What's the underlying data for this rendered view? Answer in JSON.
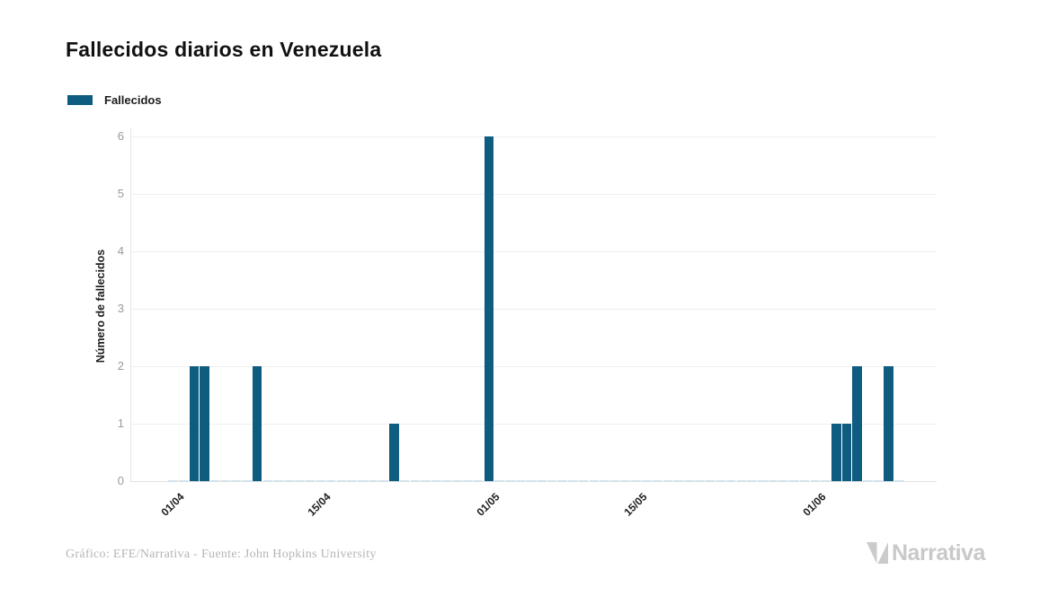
{
  "page": {
    "background": "#ffffff"
  },
  "header": {
    "title": "Fallecidos diarios en Venezuela"
  },
  "legend": {
    "items": [
      {
        "label": "Fallecidos",
        "color": "#0e5c80"
      }
    ]
  },
  "chart_data": {
    "type": "bar",
    "title": "Fallecidos diarios en Venezuela",
    "series_name": "Fallecidos",
    "xlabel": "",
    "ylabel": "Número de fallecidos",
    "ylim": [
      0,
      6
    ],
    "yticks": [
      0,
      1,
      2,
      3,
      4,
      5,
      6
    ],
    "grid": true,
    "legend_position": "top-left",
    "x_start_date": "01/04",
    "x_end_date": "09/06",
    "xtick_labels": [
      "01/04",
      "15/04",
      "01/05",
      "15/05",
      "01/06"
    ],
    "xtick_day_indices": [
      0,
      14,
      30,
      44,
      61
    ],
    "nonzero_points": [
      {
        "date": "03/04",
        "value": 2
      },
      {
        "date": "04/04",
        "value": 2
      },
      {
        "date": "09/04",
        "value": 2
      },
      {
        "date": "22/04",
        "value": 1
      },
      {
        "date": "01/05",
        "value": 6
      },
      {
        "date": "03/06",
        "value": 1
      },
      {
        "date": "04/06",
        "value": 1
      },
      {
        "date": "05/06",
        "value": 2
      },
      {
        "date": "08/06",
        "value": 2
      }
    ],
    "series": [
      {
        "name": "Fallecidos",
        "color": "#0e5c80",
        "daily_values": [
          0,
          0,
          2,
          2,
          0,
          0,
          0,
          0,
          2,
          0,
          0,
          0,
          0,
          0,
          0,
          0,
          0,
          0,
          0,
          0,
          0,
          1,
          0,
          0,
          0,
          0,
          0,
          0,
          0,
          0,
          6,
          0,
          0,
          0,
          0,
          0,
          0,
          0,
          0,
          0,
          0,
          0,
          0,
          0,
          0,
          0,
          0,
          0,
          0,
          0,
          0,
          0,
          0,
          0,
          0,
          0,
          0,
          0,
          0,
          0,
          0,
          0,
          0,
          1,
          1,
          2,
          0,
          0,
          2,
          0
        ]
      }
    ]
  },
  "footer": {
    "credit": "Gráfico: EFE/Narrativa - Fuente: John Hopkins University",
    "brand": "Narrativa"
  },
  "colors": {
    "bar": "#0e5c80",
    "zero_dash": "#d3e1e9",
    "grid": "#efefef",
    "axis_line": "#e2e2e2",
    "y_tick_label": "#9a9a9a",
    "x_tick_label": "#1c1c1c",
    "title": "#111111",
    "footer_text": "#b5b5b5",
    "logo": "#c9c9c9"
  }
}
